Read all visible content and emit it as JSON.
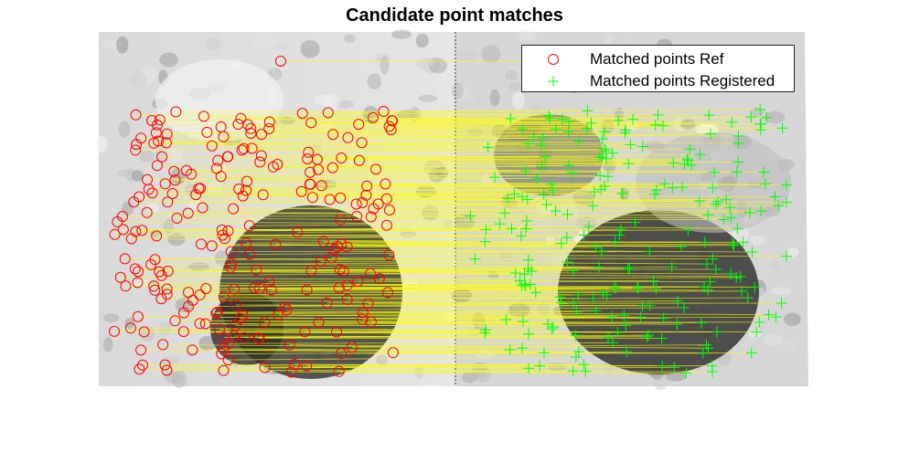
{
  "figure": {
    "title": "Candidate point matches",
    "legend": {
      "entries": [
        {
          "label": "Matched points Ref",
          "marker": "circle-marker",
          "color": "#ff0000"
        },
        {
          "label": "Matched points Registered",
          "marker": "plus-marker",
          "color": "#00ff00"
        }
      ]
    },
    "colors": {
      "ref_marker": "#ff0000",
      "registered_marker": "#00ff00",
      "match_line": "#ffff00",
      "legend_border": "#262626"
    }
  }
}
